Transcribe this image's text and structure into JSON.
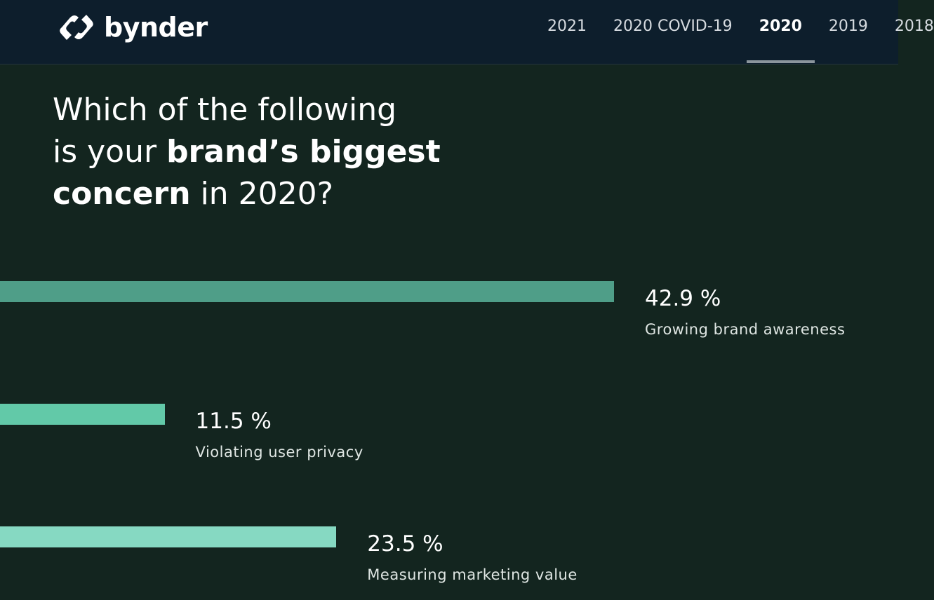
{
  "header": {
    "logo": "bynder",
    "nav": [
      "2021",
      "2020 COVID-19",
      "2020",
      "2019",
      "2018"
    ],
    "active_index": 2
  },
  "chart_data": {
    "type": "bar",
    "orientation": "horizontal",
    "title_lines": [
      [
        {
          "text": "Which of the following",
          "bold": false
        }
      ],
      [
        {
          "text": "is your ",
          "bold": false
        },
        {
          "text": "brand’s biggest",
          "bold": true
        }
      ],
      [
        {
          "text": "concern",
          "bold": true
        },
        {
          "text": " in 2020?",
          "bold": false
        }
      ]
    ],
    "categories": [
      "Growing brand awareness",
      "Violating user privacy",
      "Measuring marketing value"
    ],
    "values": [
      42.9,
      11.5,
      23.5
    ],
    "value_labels": [
      "42.9 %",
      "11.5 %",
      "23.5 %"
    ],
    "colors": [
      "#4f9e88",
      "#62c9a8",
      "#86d9c2"
    ]
  }
}
